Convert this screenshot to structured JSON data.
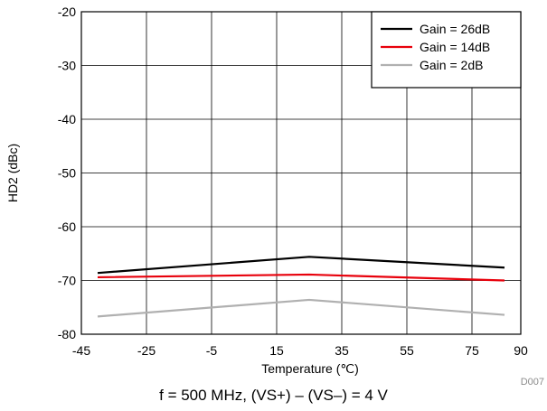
{
  "chart_data": {
    "type": "line",
    "xlabel": "Temperature (℃)",
    "ylabel": "HD2 (dBc)",
    "xlim": [
      -45,
      90
    ],
    "ylim": [
      -80,
      -20
    ],
    "xticks": [
      "-45",
      "-25",
      "-5",
      "15",
      "35",
      "55",
      "75",
      "90"
    ],
    "yticks": [
      "-20",
      "-30",
      "-40",
      "-50",
      "-60",
      "-70",
      "-80"
    ],
    "grid": true,
    "legend_position": "top-right",
    "series": [
      {
        "name": "Gain = 26dB",
        "color": "#000000",
        "x": [
          -40,
          25,
          85
        ],
        "y": [
          -68.6,
          -65.6,
          -67.6
        ]
      },
      {
        "name": "Gain = 14dB",
        "color": "#e8000b",
        "x": [
          -40,
          25,
          85
        ],
        "y": [
          -69.4,
          -68.9,
          -70.0
        ]
      },
      {
        "name": "Gain = 2dB",
        "color": "#b0b0b0",
        "x": [
          -40,
          25,
          85
        ],
        "y": [
          -76.7,
          -73.6,
          -76.4
        ]
      }
    ]
  },
  "figure_code": "D007",
  "caption": "f = 500 MHz, (VS+) – (VS–) = 4 V"
}
